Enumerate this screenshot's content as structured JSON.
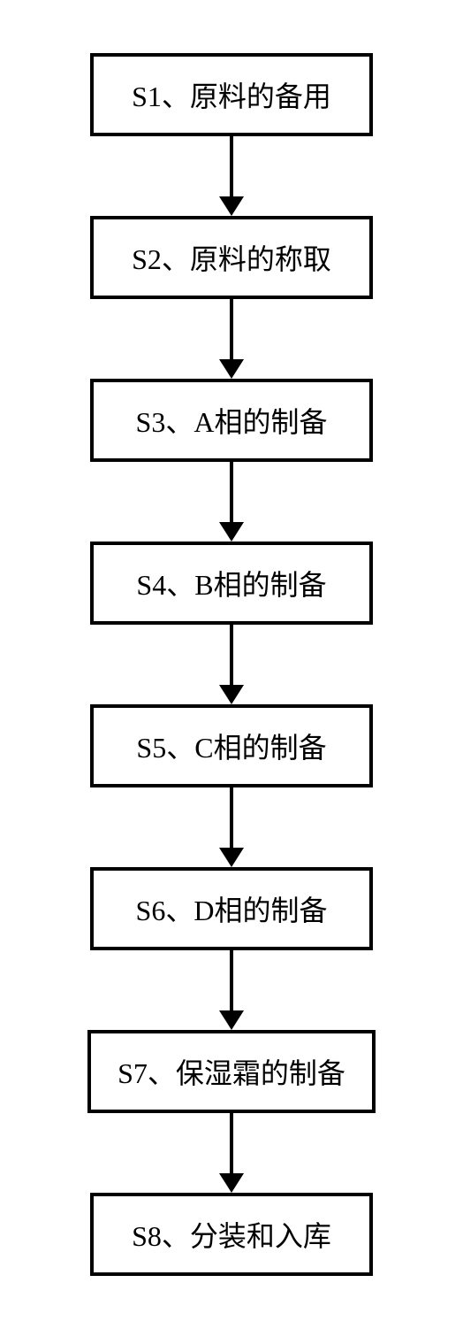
{
  "flowchart": {
    "type": "flowchart",
    "direction": "top-down",
    "background_color": "#ffffff",
    "border_color": "#000000",
    "border_width": 4,
    "text_color": "#000000",
    "font_size": 32,
    "box_min_width": 320,
    "arrow_line_height": 70,
    "arrow_line_width": 4,
    "arrow_head_width": 28,
    "arrow_head_height": 22,
    "nodes": [
      {
        "id": "s1",
        "label": "S1、原料的备用"
      },
      {
        "id": "s2",
        "label": "S2、原料的称取"
      },
      {
        "id": "s3",
        "label": "S3、A相的制备"
      },
      {
        "id": "s4",
        "label": "S4、B相的制备"
      },
      {
        "id": "s5",
        "label": "S5、C相的制备"
      },
      {
        "id": "s6",
        "label": "S6、D相的制备"
      },
      {
        "id": "s7",
        "label": "S7、保湿霜的制备"
      },
      {
        "id": "s8",
        "label": "S8、分装和入库"
      }
    ],
    "edges": [
      {
        "from": "s1",
        "to": "s2"
      },
      {
        "from": "s2",
        "to": "s3"
      },
      {
        "from": "s3",
        "to": "s4"
      },
      {
        "from": "s4",
        "to": "s5"
      },
      {
        "from": "s5",
        "to": "s6"
      },
      {
        "from": "s6",
        "to": "s7"
      },
      {
        "from": "s7",
        "to": "s8"
      }
    ]
  }
}
